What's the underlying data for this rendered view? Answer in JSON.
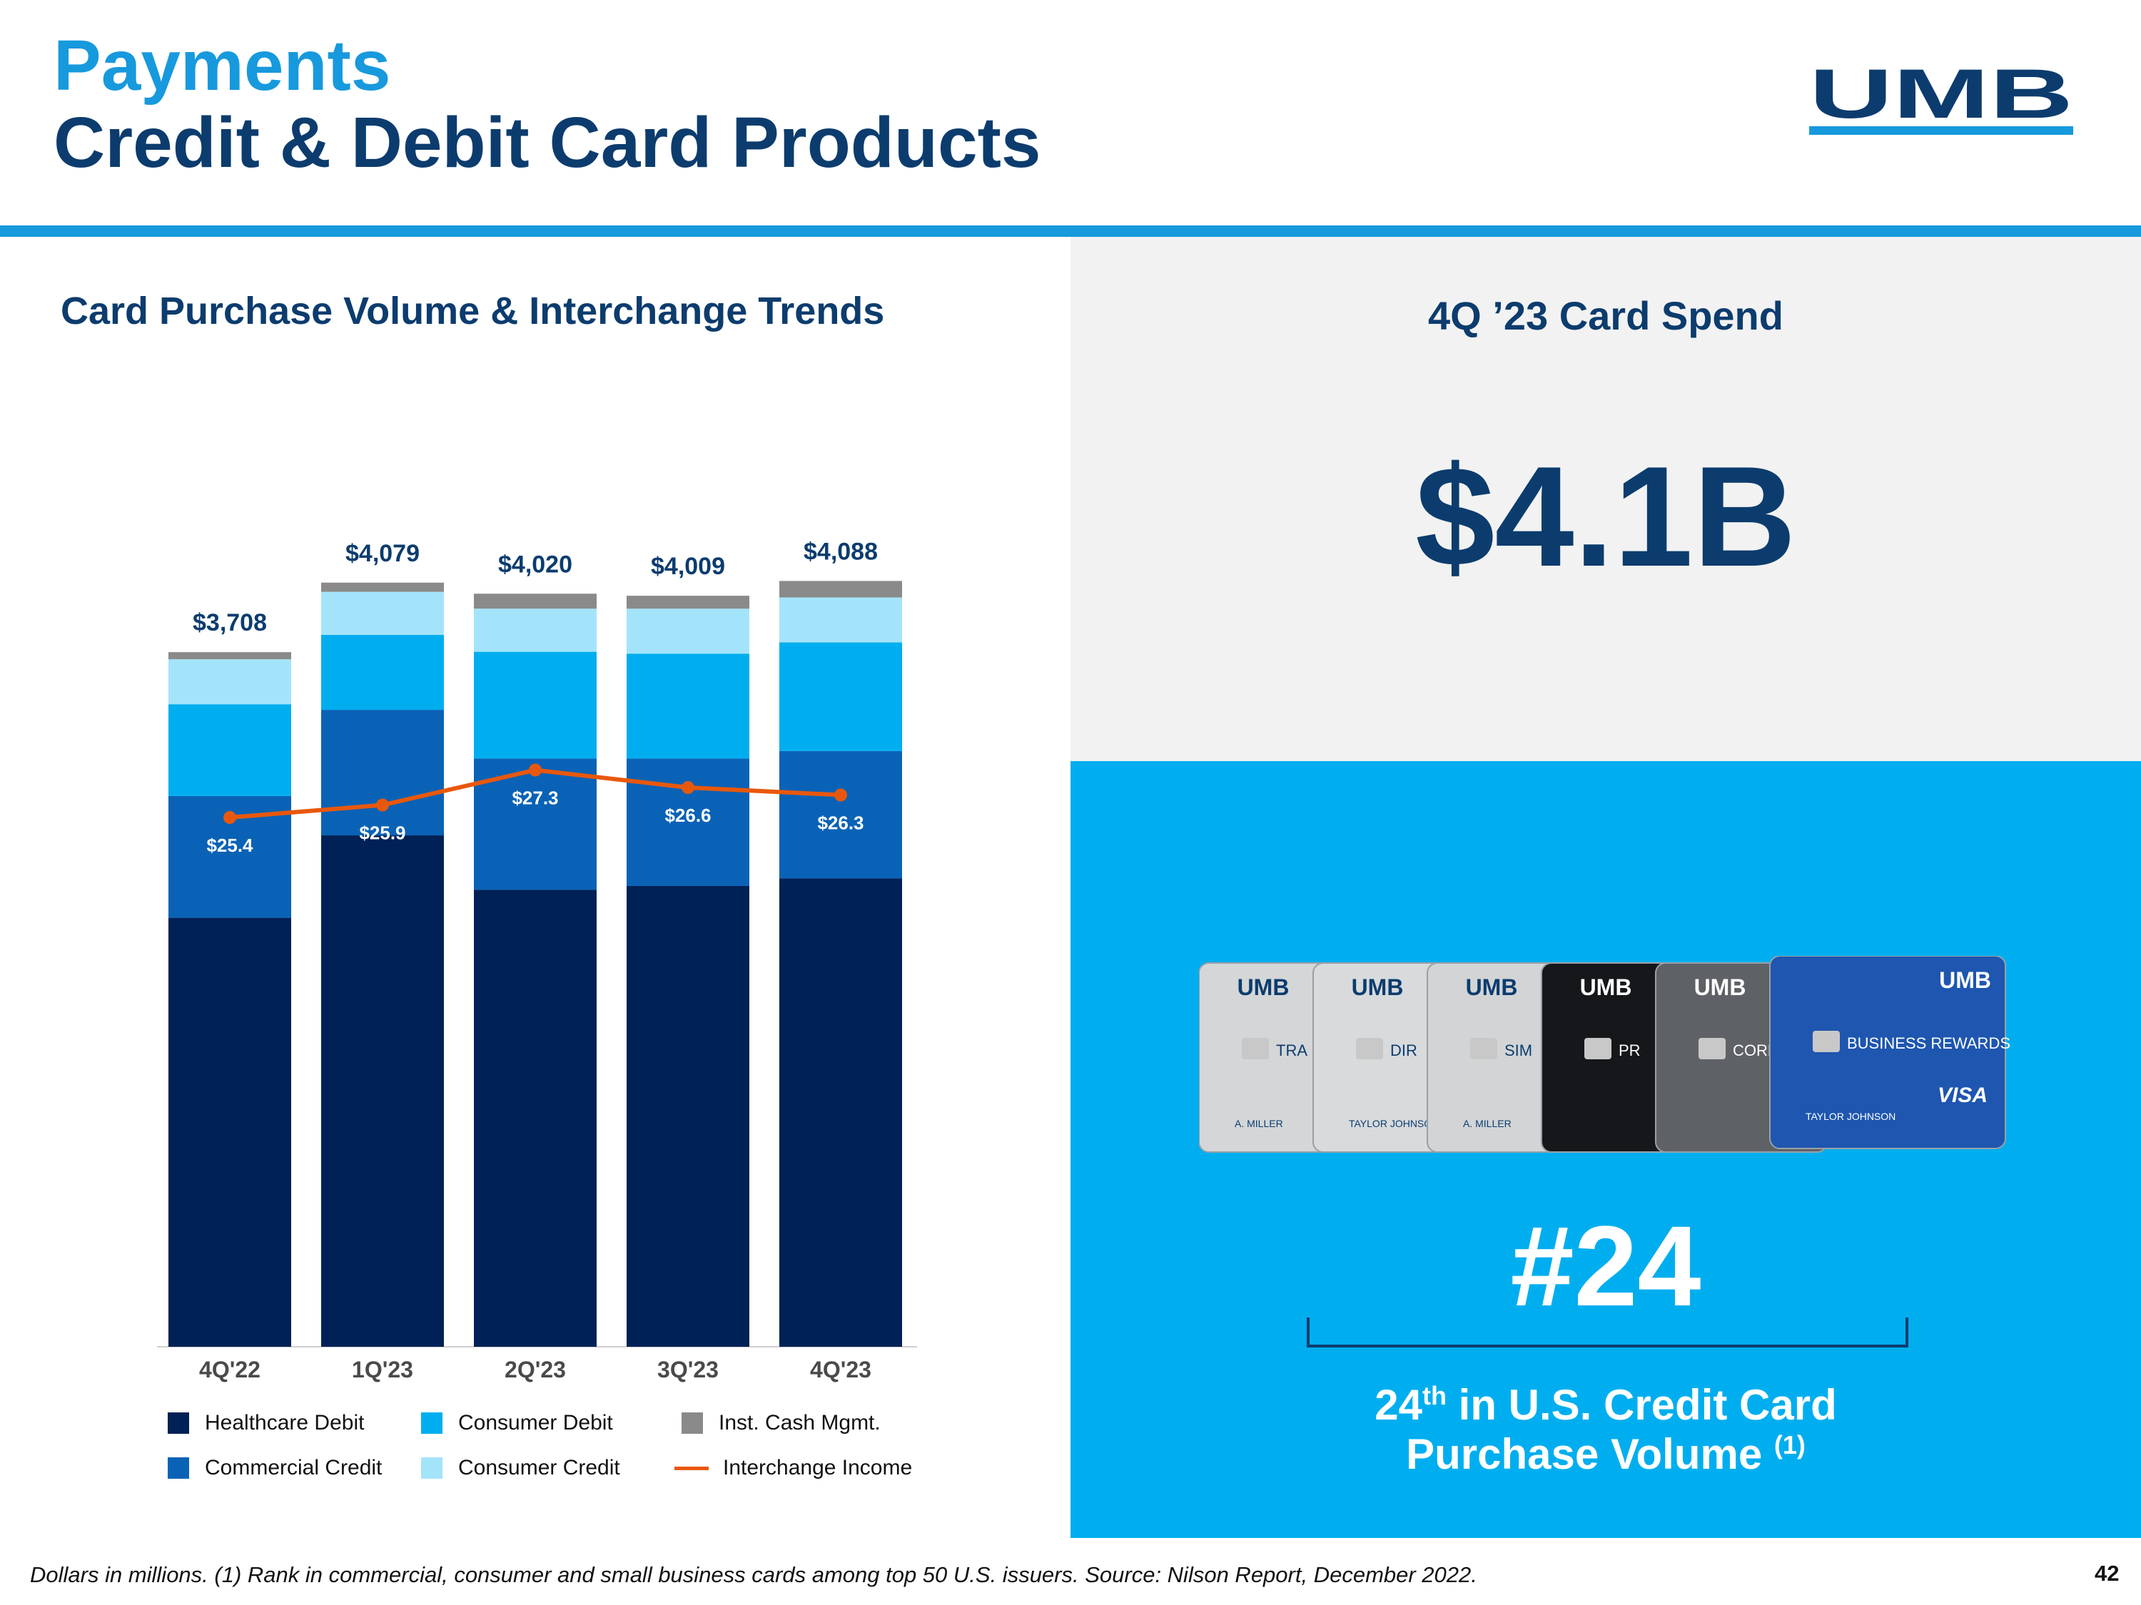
{
  "header": {
    "title_line1": "Payments",
    "title_line2": "Credit & Debit Card Products",
    "logo_text": "UMB"
  },
  "colors": {
    "navy": "#0c3c6e",
    "accent": "#1799dd",
    "panel_grey": "#f2f2f2",
    "panel_blue": "#00aeef"
  },
  "chart_data": {
    "type": "bar",
    "stacked": true,
    "title": "Card Purchase Volume & Interchange Trends",
    "categories": [
      "4Q'22",
      "1Q'23",
      "2Q'23",
      "3Q'23",
      "4Q'23"
    ],
    "totals": [
      3708,
      4079,
      4020,
      4009,
      4088
    ],
    "total_labels": [
      "$3,708",
      "$4,079",
      "$4,020",
      "$4,009",
      "$4,088"
    ],
    "ylim": [
      0,
      4200
    ],
    "series": [
      {
        "name": "Healthcare Debit",
        "color": "#002156",
        "values": [
          2290,
          2730,
          2440,
          2460,
          2500
        ]
      },
      {
        "name": "Commercial Credit",
        "color": "#0a62b6",
        "values": [
          650,
          670,
          700,
          680,
          680
        ]
      },
      {
        "name": "Consumer Debit",
        "color": "#00aeef",
        "values": [
          490,
          400,
          570,
          560,
          580
        ]
      },
      {
        "name": "Consumer Credit",
        "color": "#a4e4fa",
        "values": [
          240,
          230,
          230,
          240,
          240
        ]
      },
      {
        "name": "Inst. Cash Mgmt.",
        "color": "#8a8a8a",
        "values": [
          38,
          49,
          80,
          69,
          88
        ]
      }
    ],
    "line": {
      "name": "Interchange Income",
      "color": "#e8580c",
      "values": [
        25.4,
        25.9,
        27.3,
        26.6,
        26.3
      ],
      "labels": [
        "$25.4",
        "$25.9",
        "$27.3",
        "$26.6",
        "$26.3"
      ]
    },
    "legend": [
      {
        "name": "Healthcare Debit",
        "kind": "box",
        "color": "#002156"
      },
      {
        "name": "Consumer Debit",
        "kind": "box",
        "color": "#00aeef"
      },
      {
        "name": "Inst. Cash Mgmt.",
        "kind": "box",
        "color": "#8a8a8a"
      },
      {
        "name": "Commercial Credit",
        "kind": "box",
        "color": "#0a62b6"
      },
      {
        "name": "Consumer Credit",
        "kind": "box",
        "color": "#a4e4fa"
      },
      {
        "name": "Interchange Income",
        "kind": "line",
        "color": "#e8580c"
      }
    ]
  },
  "spend": {
    "label": "4Q ’23 Card Spend",
    "value": "$4.1B"
  },
  "cards_images": [
    {
      "logo": "UMB",
      "text": "TRA",
      "name": "A. MILLER"
    },
    {
      "logo": "UMB",
      "text": "DIR",
      "name": "TAYLOR JOHNSON"
    },
    {
      "logo": "UMB",
      "text": "SIM",
      "name": "A. MILLER"
    },
    {
      "logo": "UMB",
      "text": "PR",
      "name": ""
    },
    {
      "logo": "UMB",
      "text": "CORPORA",
      "name": ""
    },
    {
      "logo": "UMB",
      "text": "BUSINESS REWARDS",
      "name": "TAYLOR JOHNSON",
      "network": "VISA"
    }
  ],
  "rank": {
    "value": "#24",
    "text_num": "24",
    "text_sup": "th",
    "text_rest": " in U.S. Credit Card",
    "text_line2": "Purchase Volume ",
    "footnote_ref": "(1)"
  },
  "footer": {
    "footnote": "Dollars in millions. (1) Rank in commercial, consumer and small business cards among top 50 U.S. issuers. Source: Nilson Report, December 2022.",
    "page_number": "42"
  }
}
